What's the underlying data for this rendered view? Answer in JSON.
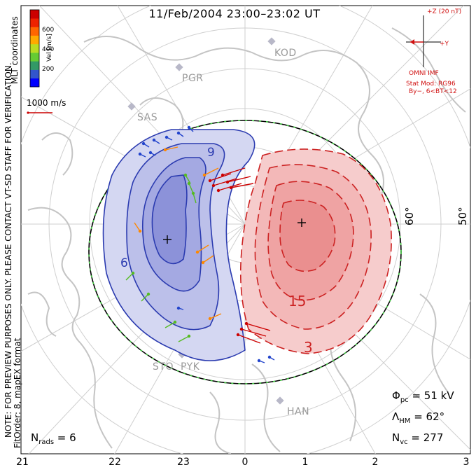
{
  "title": "11/Feb/2004 23:00–23:02 UT",
  "sidebar": {
    "line1": "NOTE: FOR PREVIEW PURPOSES ONLY. PLEASE CONTACT VT-SD STAFF FOR VERIFICATION.",
    "line2": "FitOrder: 8, mapEX format",
    "coords": "MLT coordinates"
  },
  "colorbar": {
    "label": "Vel [m/s]",
    "ticks": [
      "600",
      "400",
      "200"
    ],
    "colors": [
      "#0000ff",
      "#3355cc",
      "#339966",
      "#66cc33",
      "#bbdd22",
      "#ffaa00",
      "#ff6600",
      "#ee2200",
      "#cc0000"
    ]
  },
  "vector_scale": {
    "label": "1000 m/s",
    "color": "#cc0000"
  },
  "imf": {
    "z_label": "+Z (20 nT)",
    "y_label": "+Y",
    "omni": "OMNI IMF",
    "model": "Stat Mod: RG96",
    "model_params": "By−, 6<BT<12",
    "color": "#d01010"
  },
  "stats": {
    "phi_symbol": "Φ",
    "phi_sub": "pc",
    "phi_value": " = 51 kV",
    "lambda_symbol": "Λ",
    "lambda_sub": "HM",
    "lambda_value": " = 62°",
    "nvc_symbol": "N",
    "nvc_sub": "vc",
    "nvc_value": " = 277",
    "nrads_symbol": "N",
    "nrads_sub": "rads",
    "nrads_value": " = 6"
  },
  "mlt_ticks": [
    "21",
    "22",
    "23",
    "0",
    "1",
    "2",
    "3"
  ],
  "lat_labels": [
    "60°",
    "50°"
  ],
  "stations": [
    "KOD",
    "PGR",
    "SAS",
    "STO",
    "PYK",
    "HAN"
  ],
  "contour_labels": {
    "neg": "9",
    "neg2": "6",
    "pos": "15",
    "pos2": "3"
  },
  "colors": {
    "negative_cell": "#2b3bb0",
    "positive_cell": "#cc2222",
    "neg_fill": "#b8bde8",
    "pos_fill": "#f3b6b6",
    "map_lines": "#c8c8c8",
    "boundary_dash": "#44cc44"
  }
}
